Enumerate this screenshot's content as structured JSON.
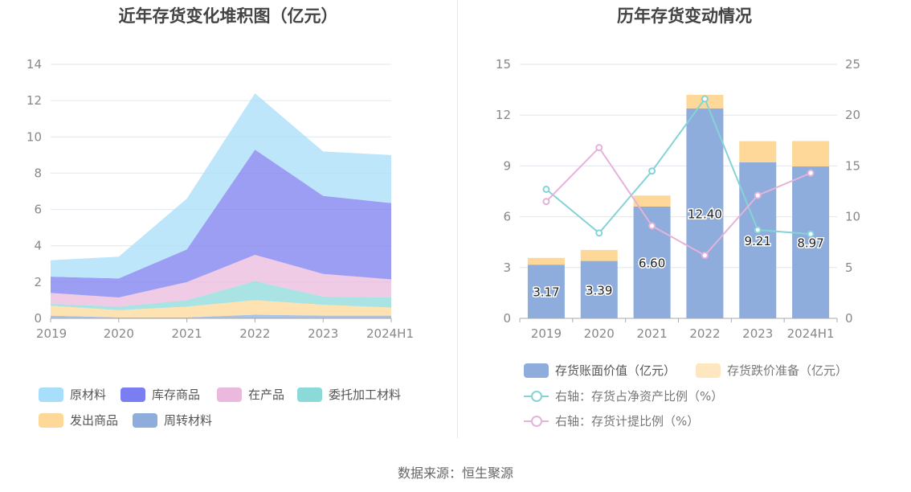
{
  "source": "数据来源：恒生聚源",
  "chart_data": [
    {
      "type": "area",
      "stacked": true,
      "title": "近年存货变化堆积图（亿元）",
      "categories": [
        "2019",
        "2020",
        "2021",
        "2022",
        "2023",
        "2024H1"
      ],
      "ylim": [
        0,
        14
      ],
      "yticks": [
        0,
        2,
        4,
        6,
        8,
        10,
        12,
        14
      ],
      "grid": true,
      "legend_position": "bottom",
      "series": [
        {
          "name": "周转材料",
          "color": "#8eaddc",
          "values": [
            0.15,
            0.05,
            0.05,
            0.2,
            0.15,
            0.15
          ]
        },
        {
          "name": "发出商品",
          "color": "#fdd898",
          "values": [
            0.55,
            0.4,
            0.6,
            0.8,
            0.6,
            0.45
          ]
        },
        {
          "name": "委托加工材料",
          "color": "#8cd9d9",
          "values": [
            0.1,
            0.2,
            0.35,
            1.05,
            0.45,
            0.55
          ]
        },
        {
          "name": "在产品",
          "color": "#eab9dd",
          "values": [
            0.6,
            0.5,
            1.0,
            1.45,
            1.25,
            1.0
          ]
        },
        {
          "name": "库存商品",
          "color": "#7b7ef0",
          "values": [
            0.9,
            1.05,
            1.8,
            5.8,
            4.3,
            4.2
          ]
        },
        {
          "name": "原材料",
          "color": "#a8defa",
          "values": [
            0.9,
            1.2,
            2.8,
            3.1,
            2.45,
            2.65
          ]
        }
      ],
      "legend_order": [
        "原材料",
        "库存商品",
        "在产品",
        "委托加工材料",
        "发出商品",
        "周转材料"
      ]
    },
    {
      "type": "bar",
      "stacked": true,
      "title": "历年存货变动情况",
      "categories": [
        "2019",
        "2020",
        "2021",
        "2022",
        "2023",
        "2024H1"
      ],
      "ylim": [
        0,
        15
      ],
      "yticks": [
        0,
        3,
        6,
        9,
        12,
        15
      ],
      "y2lim": [
        0,
        25
      ],
      "y2ticks": [
        0,
        5,
        10,
        15,
        20,
        25
      ],
      "grid": true,
      "legend_position": "bottom",
      "bar_series": [
        {
          "name": "存货账面价值（亿元）",
          "color": "#8eaddc",
          "values": [
            3.17,
            3.39,
            6.6,
            12.4,
            9.21,
            8.97
          ],
          "labels": [
            "3.17",
            "3.39",
            "6.60",
            "12.40",
            "9.21",
            "8.97"
          ]
        },
        {
          "name": "存货跌价准备（亿元）",
          "color": "#fdd898",
          "values": [
            0.4,
            0.65,
            0.65,
            0.8,
            1.25,
            1.5
          ]
        }
      ],
      "line_series": [
        {
          "name": "右轴：存货占净资产比例（%）",
          "color": "#86d3d6",
          "axis": "right",
          "values": [
            12.7,
            8.4,
            14.5,
            21.6,
            8.7,
            8.3
          ]
        },
        {
          "name": "右轴：存货计提比例（%）",
          "color": "#e6b3d8",
          "axis": "right",
          "values": [
            11.5,
            16.8,
            9.1,
            6.2,
            12.1,
            14.3
          ]
        }
      ]
    }
  ]
}
